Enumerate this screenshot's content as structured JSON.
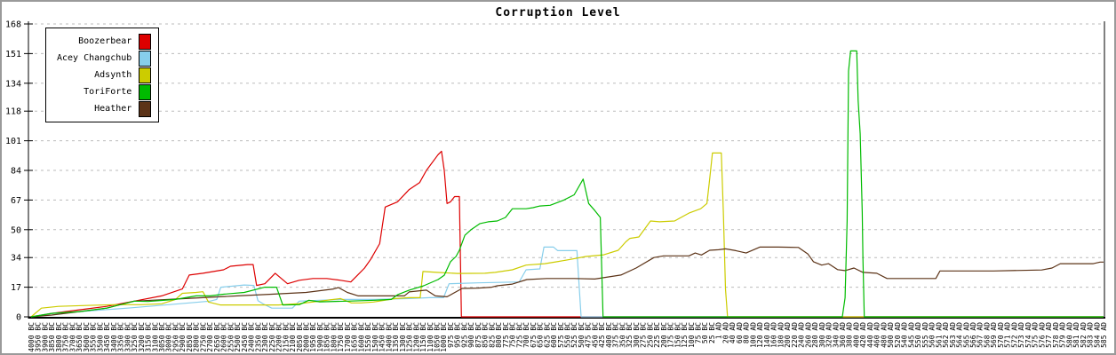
{
  "window": {
    "background": "#ffffff",
    "frame_border_color": "#9a9a9a"
  },
  "chart_data": {
    "type": "line",
    "title": "Corruption Level",
    "xlabel": "",
    "ylabel": "",
    "ylim": [
      0,
      168
    ],
    "yticks": [
      0,
      17,
      34,
      50,
      67,
      84,
      101,
      118,
      134,
      151,
      168
    ],
    "grid": "horizontal-dashed",
    "gridline_color": "#bbbbbb",
    "axis_color": "#000000",
    "legend_position": "top-left",
    "x_labels": [
      "4000 BC",
      "3950 BC",
      "3900 BC",
      "3850 BC",
      "3800 BC",
      "3750 BC",
      "3700 BC",
      "3650 BC",
      "3600 BC",
      "3550 BC",
      "3500 BC",
      "3450 BC",
      "3400 BC",
      "3350 BC",
      "3300 BC",
      "3250 BC",
      "3200 BC",
      "3150 BC",
      "3100 BC",
      "3050 BC",
      "3000 BC",
      "2950 BC",
      "2900 BC",
      "2850 BC",
      "2800 BC",
      "2750 BC",
      "2700 BC",
      "2650 BC",
      "2600 BC",
      "2550 BC",
      "2500 BC",
      "2450 BC",
      "2400 BC",
      "2350 BC",
      "2300 BC",
      "2250 BC",
      "2200 BC",
      "2150 BC",
      "2100 BC",
      "2050 BC",
      "2000 BC",
      "1950 BC",
      "1900 BC",
      "1850 BC",
      "1800 BC",
      "1750 BC",
      "1700 BC",
      "1650 BC",
      "1600 BC",
      "1550 BC",
      "1500 BC",
      "1450 BC",
      "1400 BC",
      "1350 BC",
      "1300 BC",
      "1250 BC",
      "1200 BC",
      "1150 BC",
      "1100 BC",
      "1050 BC",
      "1000 BC",
      "975 BC",
      "950 BC",
      "925 BC",
      "900 BC",
      "875 BC",
      "850 BC",
      "825 BC",
      "800 BC",
      "775 BC",
      "750 BC",
      "725 BC",
      "700 BC",
      "675 BC",
      "650 BC",
      "625 BC",
      "600 BC",
      "575 BC",
      "550 BC",
      "525 BC",
      "500 BC",
      "475 BC",
      "450 BC",
      "425 BC",
      "400 BC",
      "375 BC",
      "350 BC",
      "325 BC",
      "300 BC",
      "275 BC",
      "250 BC",
      "225 BC",
      "200 BC",
      "175 BC",
      "150 BC",
      "125 BC",
      "100 BC",
      "75 BC",
      "50 BC",
      "25 BC",
      "1 AD",
      "20 AD",
      "40 AD",
      "60 AD",
      "80 AD",
      "100 AD",
      "120 AD",
      "140 AD",
      "160 AD",
      "180 AD",
      "200 AD",
      "220 AD",
      "240 AD",
      "260 AD",
      "280 AD",
      "300 AD",
      "320 AD",
      "340 AD",
      "360 AD",
      "380 AD",
      "400 AD",
      "420 AD",
      "440 AD",
      "460 AD",
      "480 AD",
      "500 AD",
      "520 AD",
      "540 AD",
      "545 AD",
      "550 AD",
      "555 AD",
      "560 AD",
      "561 AD",
      "562 AD",
      "563 AD",
      "564 AD",
      "565 AD",
      "566 AD",
      "567 AD",
      "568 AD",
      "569 AD",
      "570 AD",
      "571 AD",
      "572 AD",
      "573 AD",
      "574 AD",
      "575 AD",
      "576 AD",
      "577 AD",
      "578 AD",
      "579 AD",
      "580 AD",
      "581 AD",
      "582 AD",
      "583 AD",
      "584 AD",
      "585 AD"
    ],
    "series": [
      {
        "name": "Boozerbear",
        "color": "#dd0000",
        "points": [
          [
            0,
            0
          ],
          [
            3,
            2
          ],
          [
            7,
            4
          ],
          [
            11,
            6
          ],
          [
            15,
            9
          ],
          [
            19,
            12
          ],
          [
            22,
            16
          ],
          [
            23,
            24
          ],
          [
            25,
            25
          ],
          [
            28,
            27
          ],
          [
            29,
            29
          ],
          [
            31.5,
            30
          ],
          [
            32.3,
            30
          ],
          [
            32.8,
            18
          ],
          [
            34,
            19
          ],
          [
            35.5,
            25
          ],
          [
            37.3,
            19
          ],
          [
            39,
            21
          ],
          [
            41,
            22
          ],
          [
            43,
            22
          ],
          [
            45,
            21
          ],
          [
            46.5,
            20
          ],
          [
            47.5,
            24
          ],
          [
            48.5,
            28
          ],
          [
            49.4,
            33
          ],
          [
            50.7,
            42
          ],
          [
            51.5,
            63
          ],
          [
            53.3,
            66
          ],
          [
            55,
            73
          ],
          [
            56.5,
            77
          ],
          [
            57.5,
            84
          ],
          [
            59.2,
            93
          ],
          [
            59.7,
            95
          ],
          [
            60.1,
            84
          ],
          [
            60.5,
            65
          ],
          [
            61,
            66
          ],
          [
            61.6,
            69
          ],
          [
            62.3,
            69
          ],
          [
            62.6,
            0
          ],
          [
            156,
            0
          ]
        ]
      },
      {
        "name": "Acey Changchub",
        "color": "#87ceeb",
        "points": [
          [
            0,
            0
          ],
          [
            3,
            2
          ],
          [
            7,
            3
          ],
          [
            14,
            5
          ],
          [
            20,
            7
          ],
          [
            26,
            9
          ],
          [
            27,
            10
          ],
          [
            27.6,
            17
          ],
          [
            29,
            17.5
          ],
          [
            31,
            18.3
          ],
          [
            32.4,
            18
          ],
          [
            33,
            9.3
          ],
          [
            33.7,
            7.6
          ],
          [
            35,
            5
          ],
          [
            38,
            5
          ],
          [
            39,
            9
          ],
          [
            42,
            9.5
          ],
          [
            45,
            10
          ],
          [
            50,
            10
          ],
          [
            55,
            10.5
          ],
          [
            58,
            11
          ],
          [
            60,
            11
          ],
          [
            60.8,
            19
          ],
          [
            65,
            19.5
          ],
          [
            71,
            20
          ],
          [
            72,
            27
          ],
          [
            74,
            27.5
          ],
          [
            74.6,
            40
          ],
          [
            76,
            40
          ],
          [
            76.6,
            38
          ],
          [
            79.4,
            38
          ],
          [
            80,
            0
          ],
          [
            156,
            0
          ]
        ]
      },
      {
        "name": "Adsynth",
        "color": "#cccc00",
        "points": [
          [
            0,
            0
          ],
          [
            1.5,
            5
          ],
          [
            4,
            6
          ],
          [
            8,
            6.5
          ],
          [
            12,
            7
          ],
          [
            16,
            7
          ],
          [
            19,
            7.5
          ],
          [
            21,
            10
          ],
          [
            22,
            13.5
          ],
          [
            24,
            14
          ],
          [
            25,
            14.4
          ],
          [
            25.8,
            8.5
          ],
          [
            27.5,
            6.8
          ],
          [
            32,
            6.8
          ],
          [
            36,
            6.8
          ],
          [
            39,
            7.6
          ],
          [
            42,
            9
          ],
          [
            44,
            10
          ],
          [
            45,
            10.5
          ],
          [
            46.6,
            8
          ],
          [
            48,
            8
          ],
          [
            49.8,
            8.5
          ],
          [
            53,
            10.5
          ],
          [
            55,
            11
          ],
          [
            56.6,
            11
          ],
          [
            57,
            26
          ],
          [
            59,
            25.5
          ],
          [
            62,
            24.9
          ],
          [
            66,
            25
          ],
          [
            67.5,
            25.5
          ],
          [
            70,
            27
          ],
          [
            72,
            29.7
          ],
          [
            74.7,
            30.5
          ],
          [
            76.5,
            31.6
          ],
          [
            78.5,
            33
          ],
          [
            80.7,
            34.6
          ],
          [
            83.3,
            35.6
          ],
          [
            85.4,
            38.2
          ],
          [
            86.5,
            43
          ],
          [
            87.1,
            45
          ],
          [
            88.4,
            45.8
          ],
          [
            90.1,
            55
          ],
          [
            91.4,
            54.5
          ],
          [
            93.6,
            55
          ],
          [
            95.7,
            59.5
          ],
          [
            97.4,
            62
          ],
          [
            98.3,
            65
          ],
          [
            98.7,
            79
          ],
          [
            99.1,
            94
          ],
          [
            100.4,
            94
          ],
          [
            100.7,
            60
          ],
          [
            101,
            16
          ],
          [
            101.3,
            0
          ],
          [
            156,
            0
          ]
        ]
      },
      {
        "name": "ToriForte",
        "color": "#00bb00",
        "points": [
          [
            0,
            0
          ],
          [
            3,
            2
          ],
          [
            7,
            3
          ],
          [
            11,
            5
          ],
          [
            15,
            9
          ],
          [
            17,
            8.8
          ],
          [
            21,
            10
          ],
          [
            24,
            12
          ],
          [
            26,
            12
          ],
          [
            28,
            13
          ],
          [
            31,
            14
          ],
          [
            34,
            17
          ],
          [
            35.7,
            17
          ],
          [
            36.6,
            6.8
          ],
          [
            39,
            7
          ],
          [
            40.4,
            9.5
          ],
          [
            42,
            8.6
          ],
          [
            46,
            9
          ],
          [
            50,
            9.5
          ],
          [
            52.4,
            10
          ],
          [
            53.3,
            12.7
          ],
          [
            55,
            15.3
          ],
          [
            57.1,
            17.8
          ],
          [
            59.2,
            21.4
          ],
          [
            60.1,
            23.9
          ],
          [
            61,
            31.6
          ],
          [
            61.8,
            34.6
          ],
          [
            62.3,
            38.2
          ],
          [
            63.1,
            46.8
          ],
          [
            64,
            50
          ],
          [
            65.3,
            53.5
          ],
          [
            66.5,
            54.5
          ],
          [
            67.8,
            55
          ],
          [
            69,
            57
          ],
          [
            70,
            62
          ],
          [
            72,
            62
          ],
          [
            73,
            62.6
          ],
          [
            74,
            63.6
          ],
          [
            75.5,
            64
          ],
          [
            77.5,
            67
          ],
          [
            79,
            70
          ],
          [
            80.3,
            79
          ],
          [
            81.1,
            65
          ],
          [
            82,
            61
          ],
          [
            82.8,
            57
          ],
          [
            83.2,
            0
          ],
          [
            118,
            0
          ],
          [
            118.4,
            11
          ],
          [
            118.7,
            55
          ],
          [
            118.9,
            141
          ],
          [
            119.2,
            152.5
          ],
          [
            120.1,
            152.5
          ],
          [
            120.3,
            124
          ],
          [
            120.6,
            105
          ],
          [
            120.9,
            60
          ],
          [
            121,
            33
          ],
          [
            121.2,
            0
          ],
          [
            156,
            0
          ]
        ]
      },
      {
        "name": "Heather",
        "color": "#5c3317",
        "points": [
          [
            0,
            0
          ],
          [
            3,
            1
          ],
          [
            7,
            3
          ],
          [
            11,
            5
          ],
          [
            15,
            9
          ],
          [
            20,
            10
          ],
          [
            25,
            11
          ],
          [
            30,
            12
          ],
          [
            35,
            13
          ],
          [
            40,
            14
          ],
          [
            44,
            16
          ],
          [
            44.7,
            16.8
          ],
          [
            46,
            14
          ],
          [
            47.6,
            12
          ],
          [
            51,
            12
          ],
          [
            54.3,
            12
          ],
          [
            55,
            14.3
          ],
          [
            57.5,
            15.3
          ],
          [
            58.8,
            12
          ],
          [
            60.5,
            11.5
          ],
          [
            62.7,
            16.3
          ],
          [
            65,
            16.5
          ],
          [
            67,
            17
          ],
          [
            67.8,
            17.8
          ],
          [
            70,
            18.8
          ],
          [
            72.1,
            21.4
          ],
          [
            75,
            22
          ],
          [
            79,
            22
          ],
          [
            82,
            21.7
          ],
          [
            85.8,
            24
          ],
          [
            88,
            28
          ],
          [
            90.6,
            34
          ],
          [
            92,
            35
          ],
          [
            95.7,
            35
          ],
          [
            96.6,
            36.6
          ],
          [
            97.5,
            35.5
          ],
          [
            98.7,
            38.2
          ],
          [
            100,
            38.5
          ],
          [
            101,
            39
          ],
          [
            102.5,
            38
          ],
          [
            104,
            36.6
          ],
          [
            106,
            40
          ],
          [
            108.7,
            40
          ],
          [
            111.6,
            39.8
          ],
          [
            113,
            36
          ],
          [
            113.8,
            31.6
          ],
          [
            115,
            29.7
          ],
          [
            116,
            30.5
          ],
          [
            117.3,
            27.1
          ],
          [
            118.4,
            26.5
          ],
          [
            119.7,
            28
          ],
          [
            121,
            25.5
          ],
          [
            123,
            25
          ],
          [
            124.5,
            22
          ],
          [
            128,
            22
          ],
          [
            131.6,
            22
          ],
          [
            132.2,
            26.3
          ],
          [
            140,
            26.3
          ],
          [
            147,
            26.9
          ],
          [
            148.5,
            28
          ],
          [
            149.7,
            30.5
          ],
          [
            154.5,
            30.5
          ],
          [
            155.5,
            31.4
          ],
          [
            156,
            31.4
          ]
        ]
      }
    ],
    "draw_order": [
      0,
      1,
      2,
      4,
      3
    ]
  }
}
